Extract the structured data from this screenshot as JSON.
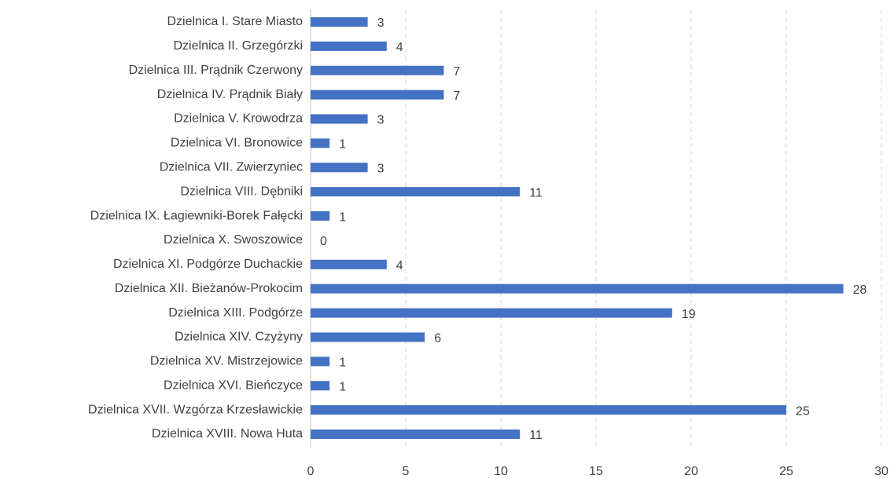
{
  "chart_data": {
    "type": "bar",
    "orientation": "horizontal",
    "categories": [
      "Dzielnica I. Stare Miasto",
      "Dzielnica II. Grzegórzki",
      "Dzielnica III. Prądnik Czerwony",
      "Dzielnica IV. Prądnik Biały",
      "Dzielnica V. Krowodrza",
      "Dzielnica VI. Bronowice",
      "Dzielnica VII. Zwierzyniec",
      "Dzielnica VIII. Dębniki",
      "Dzielnica IX. Łagiewniki-Borek Fałęcki",
      "Dzielnica X. Swoszowice",
      "Dzielnica XI. Podgórze Duchackie",
      "Dzielnica XII. Bieżanów-Prokocim",
      "Dzielnica XIII. Podgórze",
      "Dzielnica XIV. Czyżyny",
      "Dzielnica XV. Mistrzejowice",
      "Dzielnica XVI. Bieńczyce",
      "Dzielnica XVII. Wzgórza Krzesławickie",
      "Dzielnica XVIII. Nowa Huta"
    ],
    "values": [
      3,
      4,
      7,
      7,
      3,
      1,
      3,
      11,
      1,
      0,
      4,
      28,
      19,
      6,
      1,
      1,
      25,
      11
    ],
    "color": "#4472c4",
    "xlim": [
      0,
      30
    ],
    "xticks": [
      0,
      5,
      10,
      15,
      20,
      25,
      30
    ],
    "grid": true
  }
}
